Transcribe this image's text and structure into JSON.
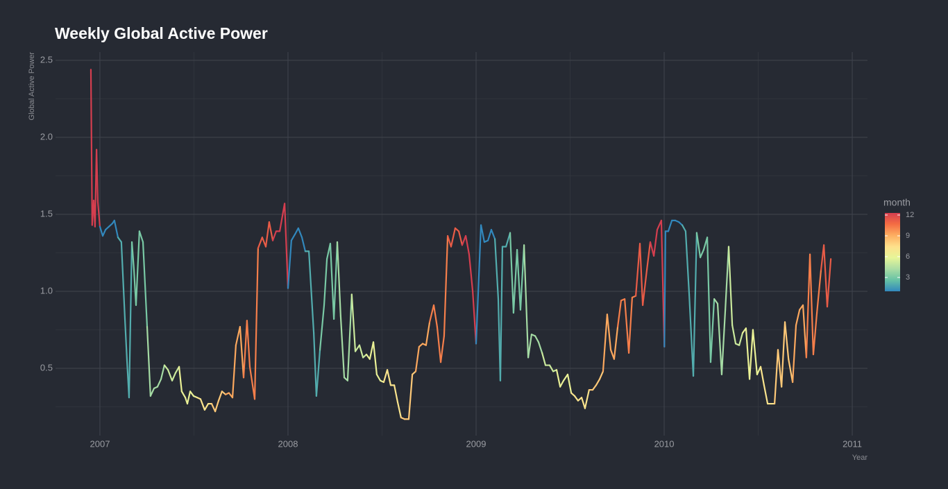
{
  "chart_data": {
    "type": "line",
    "title": "Weekly Global Active Power",
    "x_label": "Year",
    "y_label": "Global Active Power",
    "xlim": [
      2006.764,
      2011.081
    ],
    "ylim": [
      0.063,
      2.554
    ],
    "xticks": [
      2007,
      2008,
      2009,
      2010,
      2011
    ],
    "yticks": [
      0.5,
      {
        "value": 1,
        "label": "1.0"
      },
      1.5,
      {
        "value": 2,
        "label": "2.0"
      },
      2.5
    ],
    "grid": true,
    "color_scale": {
      "title": "month",
      "limits": [
        1,
        12
      ],
      "ticks": [
        3,
        6,
        9,
        12
      ],
      "colors": [
        "#3288bd",
        "#66c2a5",
        "#abdda4",
        "#e6f598",
        "#fee08b",
        "#fdae61",
        "#f46d43",
        "#d53e4f"
      ]
    },
    "x": [
      2006.952,
      2006.959,
      2006.967,
      2006.974,
      2006.982,
      2006.989,
      2007.0,
      2007.015,
      2007.03,
      2007.048,
      2007.066,
      2007.077,
      2007.096,
      2007.114,
      2007.133,
      2007.144,
      2007.155,
      2007.17,
      2007.181,
      2007.192,
      2007.21,
      2007.229,
      2007.251,
      2007.269,
      2007.288,
      2007.306,
      2007.325,
      2007.343,
      2007.362,
      2007.384,
      2007.402,
      2007.421,
      2007.435,
      2007.454,
      2007.465,
      2007.48,
      2007.498,
      2007.517,
      2007.535,
      2007.557,
      2007.576,
      2007.594,
      2007.613,
      2007.631,
      2007.649,
      2007.668,
      2007.686,
      2007.705,
      2007.723,
      2007.745,
      2007.764,
      2007.782,
      2007.797,
      2007.823,
      2007.841,
      2007.863,
      2007.882,
      2007.9,
      2007.919,
      2007.937,
      2007.956,
      2007.982,
      2008.0,
      2008.018,
      2008.037,
      2008.055,
      2008.074,
      2008.092,
      2008.111,
      2008.137,
      2008.151,
      2008.17,
      2008.192,
      2008.207,
      2008.225,
      2008.244,
      2008.262,
      2008.28,
      2008.299,
      2008.317,
      2008.339,
      2008.358,
      2008.38,
      2008.399,
      2008.417,
      2008.435,
      2008.454,
      2008.472,
      2008.491,
      2008.509,
      2008.528,
      2008.546,
      2008.565,
      2008.583,
      2008.601,
      2008.62,
      2008.642,
      2008.661,
      2008.679,
      2008.697,
      2008.716,
      2008.734,
      2008.753,
      2008.775,
      2008.793,
      2008.812,
      2008.83,
      2008.849,
      2008.867,
      2008.889,
      2008.908,
      2008.926,
      2008.945,
      2008.963,
      2008.982,
      2009.0,
      2009.026,
      2009.044,
      2009.063,
      2009.081,
      2009.1,
      2009.118,
      2009.129,
      2009.14,
      2009.159,
      2009.181,
      2009.199,
      2009.218,
      2009.236,
      2009.255,
      2009.277,
      2009.295,
      2009.314,
      2009.332,
      2009.351,
      2009.369,
      2009.391,
      2009.41,
      2009.428,
      2009.447,
      2009.465,
      2009.487,
      2009.506,
      2009.524,
      2009.542,
      2009.561,
      2009.579,
      2009.601,
      2009.62,
      2009.638,
      2009.657,
      2009.675,
      2009.697,
      2009.716,
      2009.734,
      2009.753,
      2009.771,
      2009.79,
      2009.812,
      2009.83,
      2009.849,
      2009.871,
      2009.886,
      2009.908,
      2009.926,
      2009.945,
      2009.963,
      2009.985,
      2009.996,
      2010.001,
      2010.007,
      2010.022,
      2010.041,
      2010.059,
      2010.078,
      2010.096,
      2010.114,
      2010.133,
      2010.155,
      2010.173,
      2010.192,
      2010.21,
      2010.229,
      2010.247,
      2010.266,
      2010.284,
      2010.306,
      2010.325,
      2010.343,
      2010.362,
      2010.38,
      2010.399,
      2010.417,
      2010.435,
      2010.454,
      2010.472,
      2010.494,
      2010.513,
      2010.531,
      2010.55,
      2010.568,
      2010.587,
      2010.605,
      2010.624,
      2010.642,
      2010.661,
      2010.683,
      2010.701,
      2010.72,
      2010.738,
      2010.756,
      2010.775,
      2010.793,
      2010.812,
      2010.834,
      2010.849,
      2010.867,
      2010.886
    ],
    "values": [
      2.44,
      1.43,
      1.59,
      1.42,
      1.92,
      1.58,
      1.42,
      1.36,
      1.4,
      1.42,
      1.44,
      1.46,
      1.35,
      1.32,
      0.82,
      0.55,
      0.31,
      1.32,
      1.14,
      0.91,
      1.39,
      1.32,
      0.77,
      0.32,
      0.37,
      0.38,
      0.43,
      0.52,
      0.49,
      0.42,
      0.47,
      0.51,
      0.35,
      0.31,
      0.27,
      0.35,
      0.32,
      0.31,
      0.3,
      0.23,
      0.27,
      0.27,
      0.22,
      0.29,
      0.35,
      0.33,
      0.34,
      0.31,
      0.65,
      0.77,
      0.44,
      0.81,
      0.51,
      0.3,
      1.28,
      1.35,
      1.29,
      1.45,
      1.33,
      1.39,
      1.39,
      1.57,
      1.02,
      1.33,
      1.37,
      1.41,
      1.35,
      1.26,
      1.26,
      0.73,
      0.32,
      0.62,
      0.91,
      1.21,
      1.31,
      0.82,
      1.32,
      0.84,
      0.44,
      0.42,
      0.98,
      0.61,
      0.65,
      0.57,
      0.59,
      0.56,
      0.67,
      0.46,
      0.42,
      0.41,
      0.49,
      0.39,
      0.39,
      0.28,
      0.18,
      0.17,
      0.17,
      0.46,
      0.48,
      0.64,
      0.66,
      0.65,
      0.8,
      0.91,
      0.77,
      0.54,
      0.71,
      1.36,
      1.29,
      1.41,
      1.39,
      1.3,
      1.36,
      1.24,
      1.0,
      0.66,
      1.43,
      1.32,
      1.33,
      1.4,
      1.34,
      0.95,
      0.42,
      1.29,
      1.29,
      1.38,
      0.86,
      1.27,
      0.88,
      1.3,
      0.57,
      0.72,
      0.71,
      0.67,
      0.6,
      0.52,
      0.52,
      0.48,
      0.49,
      0.38,
      0.42,
      0.46,
      0.34,
      0.32,
      0.29,
      0.31,
      0.24,
      0.36,
      0.36,
      0.39,
      0.43,
      0.48,
      0.85,
      0.62,
      0.56,
      0.77,
      0.94,
      0.95,
      0.6,
      0.96,
      0.97,
      1.31,
      0.91,
      1.14,
      1.32,
      1.23,
      1.4,
      1.46,
      0.89,
      0.64,
      1.39,
      1.39,
      1.46,
      1.46,
      1.45,
      1.43,
      1.39,
      0.98,
      0.45,
      1.38,
      1.22,
      1.27,
      1.35,
      0.54,
      0.95,
      0.92,
      0.46,
      0.88,
      1.29,
      0.78,
      0.66,
      0.65,
      0.73,
      0.76,
      0.43,
      0.75,
      0.46,
      0.51,
      0.39,
      0.27,
      0.27,
      0.27,
      0.62,
      0.38,
      0.8,
      0.56,
      0.41,
      0.78,
      0.88,
      0.91,
      0.57,
      1.24,
      0.59,
      0.86,
      1.14,
      1.3,
      0.9,
      1.21
    ]
  }
}
